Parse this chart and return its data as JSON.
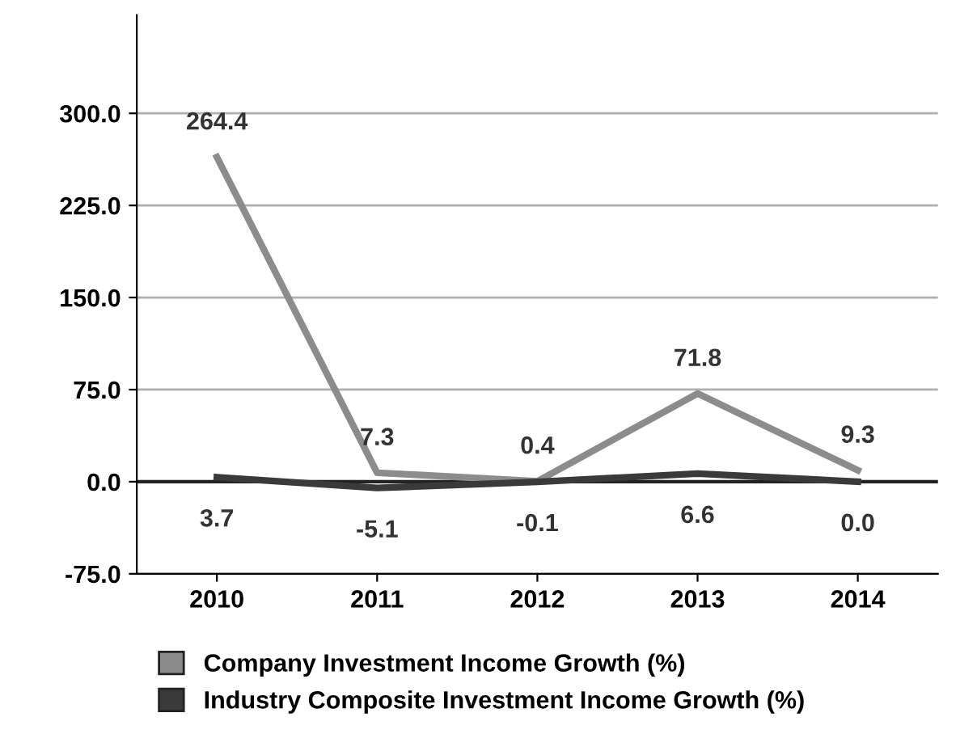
{
  "chart_data": {
    "type": "line",
    "categories": [
      "2010",
      "2011",
      "2012",
      "2013",
      "2014"
    ],
    "series": [
      {
        "name": "Company Investment Income Growth (%)",
        "color": "#8c8c8c",
        "values": [
          264.4,
          7.3,
          0.4,
          71.8,
          9.3
        ],
        "value_labels": [
          "264.4",
          "7.3",
          "0.4",
          "71.8",
          "9.3"
        ]
      },
      {
        "name": "Industry Composite Investment Income Growth (%)",
        "color": "#3a3a3a",
        "values": [
          3.7,
          -5.1,
          -0.1,
          6.6,
          0.0
        ],
        "value_labels": [
          "3.7",
          "-5.1",
          "-0.1",
          "6.6",
          "0.0"
        ]
      }
    ],
    "ylim": [
      -75,
      380
    ],
    "yticks": [
      {
        "value": -75,
        "label": "-75.0"
      },
      {
        "value": 0,
        "label": "0.0"
      },
      {
        "value": 75,
        "label": "75.0"
      },
      {
        "value": 150,
        "label": "150.0"
      },
      {
        "value": 225,
        "label": "225.0"
      },
      {
        "value": 300,
        "label": "300.0"
      }
    ],
    "grid": "y",
    "legend": "bottom",
    "marker": "none",
    "line_style": "solid"
  }
}
